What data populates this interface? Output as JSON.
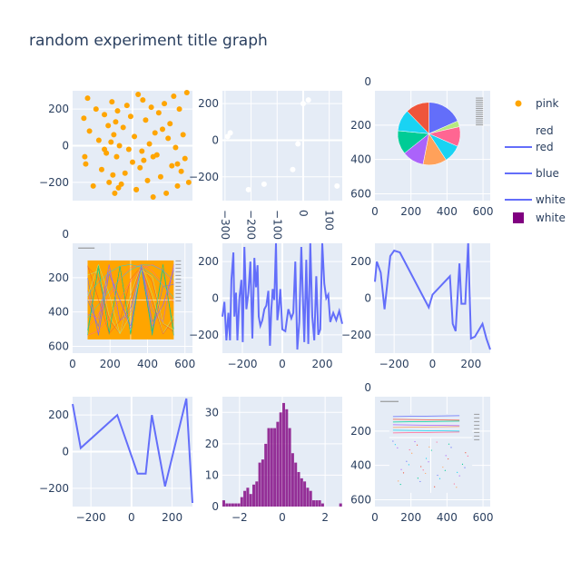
{
  "figure": {
    "title": "random experiment title graph",
    "colors": {
      "plot_bg": "#E5ECF6",
      "text": "#2a3f5f",
      "orange": "#FFA500",
      "blue": "#636EFA",
      "purple": "#800080"
    }
  },
  "legend": {
    "items": [
      {
        "label": "pink",
        "symbol": "marker",
        "color": "#FFA500"
      },
      {
        "label": "red",
        "symbol": "title"
      },
      {
        "label": "red",
        "symbol": "line",
        "color": "#636EFA"
      },
      {
        "label": "blue",
        "symbol": "line",
        "color": "#636EFA"
      },
      {
        "label": "white",
        "symbol": "line",
        "color": "#636EFA"
      },
      {
        "label": "white",
        "symbol": "square",
        "color": "#800080"
      }
    ]
  },
  "chart_data": [
    {
      "id": "p1",
      "type": "scatter",
      "color": "#FFA500",
      "xlim": [
        -320,
        320
      ],
      "ylim": [
        -300,
        300
      ],
      "xticks": [],
      "yticks": [
        -200,
        0,
        200
      ],
      "x": [
        -260,
        -250,
        -240,
        -230,
        -210,
        -195,
        -180,
        -165,
        -150,
        -140,
        -130,
        -125,
        -115,
        -110,
        -105,
        -100,
        -95,
        -90,
        -85,
        -80,
        -70,
        -60,
        -50,
        -40,
        -30,
        -20,
        -10,
        0,
        10,
        20,
        30,
        40,
        50,
        55,
        60,
        70,
        80,
        90,
        100,
        110,
        120,
        130,
        140,
        150,
        160,
        170,
        180,
        190,
        200,
        210,
        220,
        230,
        240,
        250,
        260,
        270,
        280,
        290,
        300,
        -255,
        -150,
        -75,
        20,
        110,
        240
      ],
      "y": [
        150,
        -100,
        260,
        80,
        -220,
        200,
        30,
        -130,
        170,
        -40,
        110,
        -200,
        20,
        240,
        -160,
        60,
        -260,
        130,
        -60,
        190,
        0,
        -210,
        100,
        -150,
        220,
        -20,
        160,
        -90,
        50,
        -240,
        280,
        -120,
        -30,
        250,
        -80,
        140,
        -190,
        10,
        210,
        -280,
        70,
        -50,
        180,
        -170,
        90,
        230,
        -260,
        40,
        120,
        -110,
        270,
        -10,
        -220,
        200,
        -140,
        60,
        -70,
        290,
        -200,
        -60,
        -20,
        -230,
        -240,
        -60,
        -100
      ]
    },
    {
      "id": "p2",
      "type": "scatter",
      "color": "#ffffff",
      "xlim": [
        -310,
        150
      ],
      "ylim": [
        -330,
        270
      ],
      "xticks": [
        -300,
        -200,
        -100,
        0,
        100
      ],
      "yticks": [
        -200,
        0,
        200
      ],
      "x": [
        -290,
        -280,
        -210,
        -150,
        -40,
        -20,
        0,
        20,
        130
      ],
      "y": [
        20,
        40,
        -270,
        -240,
        -160,
        -20,
        200,
        220,
        -250
      ]
    },
    {
      "id": "p3",
      "type": "pie",
      "xlim": [
        0,
        640
      ],
      "ylim": [
        0,
        640
      ],
      "xticks": [
        0,
        200,
        400,
        600
      ],
      "yticks": [
        200,
        400,
        600
      ],
      "ytop_tick": "0",
      "values": [
        18,
        3,
        10,
        9,
        12,
        11,
        12,
        11,
        12
      ],
      "colors": [
        "#636EFA",
        "#B6E880",
        "#FF6692",
        "#19D3F3",
        "#FFA15A",
        "#AB63FA",
        "#00CC96",
        "#19D3F3",
        "#EF553B"
      ]
    },
    {
      "id": "p4",
      "type": "image-thumb",
      "xlim": [
        0,
        640
      ],
      "ylim": [
        0,
        640
      ],
      "xticks": [
        0,
        200,
        400,
        600
      ],
      "yticks": [
        200,
        400,
        600
      ],
      "ytop_tick": "0",
      "bg": "#FFA500"
    },
    {
      "id": "p5",
      "type": "line",
      "color": "#636EFA",
      "xlim": [
        -300,
        300
      ],
      "ylim": [
        -300,
        300
      ],
      "xticks": [
        -200,
        0,
        200
      ],
      "yticks": [
        -200,
        0,
        200
      ],
      "x": [
        -300,
        -290,
        -280,
        -270,
        -262,
        -255,
        -245,
        -240,
        -232,
        -225,
        -215,
        -205,
        -198,
        -190,
        -180,
        -170,
        -160,
        -150,
        -140,
        -132,
        -124,
        -118,
        -110,
        -100,
        -90,
        -80,
        -70,
        -62,
        -55,
        -48,
        -40,
        -32,
        -25,
        -18,
        -10,
        0,
        15,
        30,
        45,
        55,
        65,
        75,
        85,
        95,
        110,
        120,
        130,
        140,
        150,
        160,
        170,
        180,
        190,
        200,
        210,
        220,
        230,
        240,
        255,
        270,
        285,
        300
      ],
      "y": [
        -100,
        -20,
        -230,
        -80,
        -230,
        100,
        250,
        -100,
        30,
        -230,
        0,
        100,
        -240,
        280,
        -60,
        30,
        200,
        -220,
        220,
        60,
        180,
        -100,
        -150,
        -120,
        -60,
        -40,
        40,
        -260,
        -60,
        50,
        -10,
        300,
        -120,
        -60,
        50,
        -170,
        -180,
        -60,
        -110,
        -80,
        200,
        -280,
        -130,
        280,
        -240,
        210,
        -250,
        300,
        -100,
        -230,
        120,
        -200,
        -170,
        300,
        80,
        0,
        20,
        -130,
        -80,
        -120,
        -70,
        -140
      ]
    },
    {
      "id": "p6",
      "type": "line",
      "color": "#636EFA",
      "xlim": [
        -300,
        300
      ],
      "ylim": [
        -300,
        300
      ],
      "xticks": [
        -200,
        0,
        200
      ],
      "yticks": [
        -200,
        0,
        200
      ],
      "x": [
        -300,
        -290,
        -270,
        -250,
        -220,
        -200,
        -170,
        -20,
        0,
        90,
        105,
        120,
        140,
        150,
        170,
        185,
        200,
        220,
        260,
        280,
        300
      ],
      "y": [
        90,
        200,
        140,
        -60,
        230,
        260,
        250,
        -50,
        20,
        120,
        -140,
        -180,
        190,
        -30,
        -30,
        300,
        -220,
        -210,
        -140,
        -220,
        -280
      ]
    },
    {
      "id": "p7",
      "type": "line",
      "color": "#636EFA",
      "xlim": [
        -290,
        300
      ],
      "ylim": [
        -300,
        300
      ],
      "xticks": [
        -200,
        0,
        200
      ],
      "yticks": [
        -200,
        0,
        200
      ],
      "x": [
        -290,
        -250,
        -70,
        30,
        70,
        100,
        165,
        270,
        300
      ],
      "y": [
        260,
        20,
        200,
        -120,
        -120,
        200,
        -190,
        290,
        -280
      ]
    },
    {
      "id": "p8",
      "type": "histogram",
      "color": "#800080",
      "xlim": [
        -2.8,
        2.8
      ],
      "ylim": [
        0,
        35
      ],
      "xticks": [
        -2,
        0,
        2
      ],
      "yticks": [
        0,
        10,
        20,
        30
      ],
      "bin_start": -2.8,
      "bin_width": 0.14,
      "values": [
        2,
        1,
        1,
        1,
        1,
        1,
        3,
        5,
        6,
        4,
        7,
        8,
        14,
        15,
        20,
        25,
        25,
        25,
        27,
        30,
        33,
        31,
        25,
        17,
        14,
        11,
        9,
        8,
        6,
        5,
        2,
        2,
        2,
        1,
        0,
        0,
        0,
        0,
        0,
        1
      ]
    },
    {
      "id": "p9",
      "type": "image-thumb2",
      "xlim": [
        0,
        640
      ],
      "ylim": [
        0,
        640
      ],
      "xticks": [
        0,
        200,
        400,
        600
      ],
      "yticks": [
        200,
        400,
        600
      ],
      "ytop_tick": "0",
      "bg": "#ffffff"
    }
  ]
}
